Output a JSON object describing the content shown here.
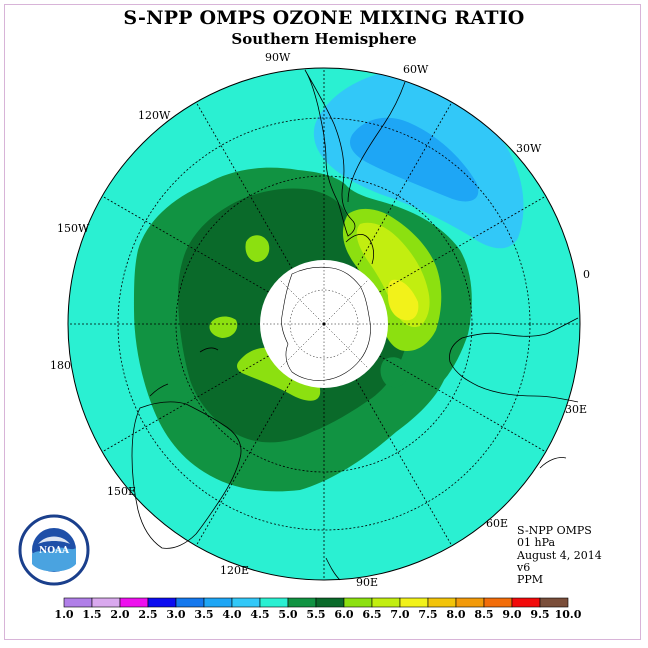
{
  "header": {
    "title": "S-NPP OMPS OZONE MIXING RATIO",
    "subtitle": "Southern Hemisphere"
  },
  "map": {
    "projection": "south polar stereographic",
    "longitude_labels": {
      "lon_90w": "90W",
      "lon_60w": "60W",
      "lon_30w": "30W",
      "lon_0": "0",
      "lon_30e": "30E",
      "lon_60e": "60E",
      "lon_90e": "90E",
      "lon_120e": "120E",
      "lon_150e": "150E",
      "lon_180": "180",
      "lon_150w": "150W",
      "lon_120w": "120W"
    },
    "field_levels_ppm": {
      "background": "4.5-5.0",
      "outer_ring": "5.0-5.5",
      "inner_ring": "5.5-6.0",
      "south_atlantic_low": "4.0-4.5",
      "south_atlantic_core": "3.5-4.0",
      "peak_near_0E": "7.0-7.5"
    }
  },
  "info": {
    "product": "S-NPP OMPS",
    "level": "01 hPa",
    "date": "August 4, 2014",
    "version": "v6",
    "units": "PPM"
  },
  "logo": {
    "text": "NOAA"
  },
  "colorbar": {
    "colors": [
      "#b07fe8",
      "#d9a9ee",
      "#ee10ee",
      "#0c0cf0",
      "#1478ee",
      "#1ea6f5",
      "#32c8f8",
      "#2af0d2",
      "#119342",
      "#0a6a2a",
      "#8ce010",
      "#c2ee10",
      "#f2f21a",
      "#f2c40a",
      "#f29a0a",
      "#f26d0a",
      "#f20a0a",
      "#7a4e3a"
    ],
    "labels": [
      "1.0",
      "1.5",
      "2.0",
      "2.5",
      "3.0",
      "3.5",
      "4.0",
      "4.5",
      "5.0",
      "5.5",
      "6.0",
      "6.5",
      "7.0",
      "7.5",
      "8.0",
      "8.5",
      "9.0",
      "9.5",
      "10.0"
    ]
  }
}
